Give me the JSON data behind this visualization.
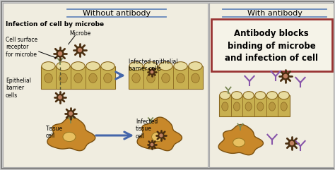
{
  "bg_color": "#c8c8c8",
  "left_panel_bg": "#f0ede0",
  "right_panel_bg": "#f0ede0",
  "border_color": "#999999",
  "title_left": "Without antibody",
  "title_right": "With antibody",
  "header_line_color": "#6688bb",
  "infection_title": "Infection of cell by microbe",
  "right_box_text": "Antibody blocks\nbinding of microbe\nand infection of cell",
  "cell_color": "#d4c070",
  "cell_body_color": "#c8b050",
  "cell_top_color": "#e8dca0",
  "microbe_color": "#4a2e10",
  "microbe_center_color": "#c08060",
  "antibody_color": "#8855aa",
  "receptor_color": "#7a8855",
  "arrow_color": "#4466aa",
  "tissue_cell_color": "#c8882a",
  "tissue_cell_edge": "#7a5010",
  "tissue_nucleus_color": "#e8c060",
  "right_box_border": "#993333",
  "right_box_bg": "#f5f3e8",
  "figw": 4.74,
  "figh": 2.41,
  "dpi": 100
}
